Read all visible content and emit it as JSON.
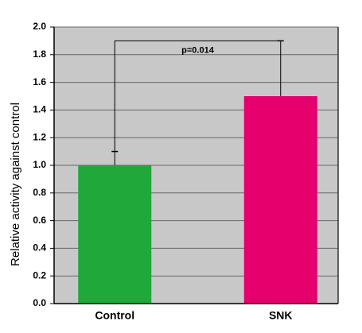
{
  "chart_data": {
    "type": "bar",
    "ylabel": "Relative activity against control",
    "categories": [
      "Control",
      "SNK"
    ],
    "values": [
      1.0,
      1.5
    ],
    "errors": [
      0.1,
      0.4
    ],
    "colors": [
      "#20a83a",
      "#e5006e"
    ],
    "annotation": "p=0.014",
    "ylim": [
      0,
      2.0
    ],
    "yticks": [
      {
        "value": 0,
        "label": "0.0"
      },
      0.2,
      0.4,
      0.6,
      0.8,
      {
        "value": 1,
        "label": "1.0"
      },
      1.2,
      1.4,
      1.6,
      1.8,
      {
        "value": 2,
        "label": "2.0"
      }
    ],
    "grid": true
  }
}
